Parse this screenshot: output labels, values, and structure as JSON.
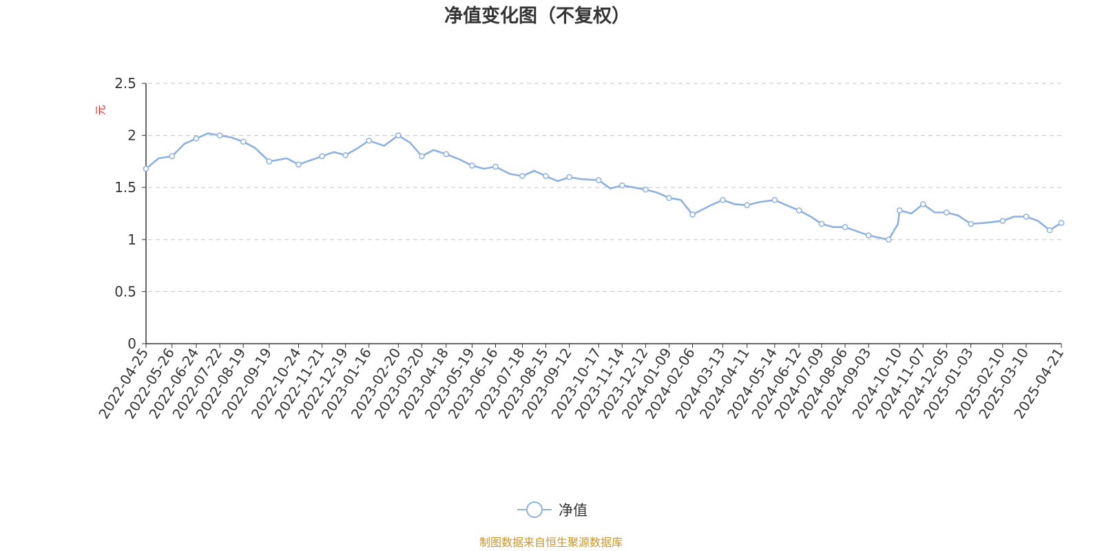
{
  "chart_data": {
    "type": "line",
    "title": "净值变化图（不复权）",
    "ylabel": "元",
    "ylim": [
      0,
      2.5
    ],
    "y_ticks": [
      "0",
      "0.5",
      "1",
      "1.5",
      "2",
      "2.5"
    ],
    "x_tick_labels": [
      "2022-04-25",
      "2022-05-26",
      "2022-06-24",
      "2022-07-22",
      "2022-08-19",
      "2022-09-19",
      "2022-10-24",
      "2022-11-21",
      "2022-12-19",
      "2023-01-16",
      "2023-02-20",
      "2023-03-20",
      "2023-04-18",
      "2023-05-19",
      "2023-06-16",
      "2023-07-18",
      "2023-08-15",
      "2023-09-12",
      "2023-10-17",
      "2023-11-14",
      "2023-12-12",
      "2024-01-09",
      "2024-02-06",
      "2024-03-13",
      "2024-04-11",
      "2024-05-14",
      "2024-06-12",
      "2024-07-09",
      "2024-08-06",
      "2024-09-03",
      "2024-10-10",
      "2024-11-07",
      "2024-12-05",
      "2025-01-03",
      "2025-02-10",
      "2025-03-10",
      "2025-04-21"
    ],
    "grid": true,
    "legend_position": "bottom",
    "series": [
      {
        "name": "净值",
        "color": "#8eb0de",
        "x": [
          "2022-04-25",
          "2022-05-10",
          "2022-05-26",
          "2022-06-10",
          "2022-06-24",
          "2022-07-08",
          "2022-07-22",
          "2022-08-05",
          "2022-08-19",
          "2022-09-02",
          "2022-09-19",
          "2022-10-10",
          "2022-10-24",
          "2022-11-07",
          "2022-11-21",
          "2022-12-05",
          "2022-12-19",
          "2023-01-03",
          "2023-01-16",
          "2023-02-03",
          "2023-02-20",
          "2023-03-06",
          "2023-03-20",
          "2023-04-03",
          "2023-04-18",
          "2023-05-04",
          "2023-05-19",
          "2023-06-02",
          "2023-06-16",
          "2023-07-03",
          "2023-07-18",
          "2023-08-01",
          "2023-08-15",
          "2023-08-29",
          "2023-09-12",
          "2023-09-26",
          "2023-10-17",
          "2023-10-31",
          "2023-11-14",
          "2023-11-28",
          "2023-12-12",
          "2023-12-26",
          "2024-01-09",
          "2024-01-23",
          "2024-02-06",
          "2024-02-28",
          "2024-03-13",
          "2024-03-27",
          "2024-04-11",
          "2024-04-26",
          "2024-05-14",
          "2024-05-28",
          "2024-06-12",
          "2024-06-26",
          "2024-07-09",
          "2024-07-23",
          "2024-08-06",
          "2024-08-20",
          "2024-09-03",
          "2024-09-20",
          "2024-09-27",
          "2024-10-08",
          "2024-10-10",
          "2024-10-24",
          "2024-11-07",
          "2024-11-21",
          "2024-12-05",
          "2024-12-19",
          "2025-01-03",
          "2025-01-20",
          "2025-02-10",
          "2025-02-24",
          "2025-03-10",
          "2025-03-24",
          "2025-04-07",
          "2025-04-21"
        ],
        "values": [
          1.68,
          1.78,
          1.8,
          1.92,
          1.97,
          2.02,
          2.0,
          1.98,
          1.94,
          1.88,
          1.75,
          1.78,
          1.72,
          1.76,
          1.8,
          1.84,
          1.81,
          1.88,
          1.95,
          1.9,
          2.0,
          1.93,
          1.8,
          1.86,
          1.82,
          1.77,
          1.71,
          1.68,
          1.7,
          1.63,
          1.61,
          1.66,
          1.61,
          1.56,
          1.6,
          1.58,
          1.57,
          1.49,
          1.52,
          1.5,
          1.48,
          1.45,
          1.4,
          1.38,
          1.24,
          1.33,
          1.38,
          1.34,
          1.33,
          1.36,
          1.38,
          1.33,
          1.28,
          1.22,
          1.15,
          1.12,
          1.12,
          1.08,
          1.04,
          1.01,
          1.0,
          1.15,
          1.28,
          1.25,
          1.34,
          1.26,
          1.26,
          1.23,
          1.15,
          1.16,
          1.18,
          1.22,
          1.22,
          1.18,
          1.09,
          1.16
        ]
      }
    ]
  },
  "legend": {
    "label": "净值"
  },
  "footer": {
    "source": "制图数据来自恒生聚源数据库"
  }
}
